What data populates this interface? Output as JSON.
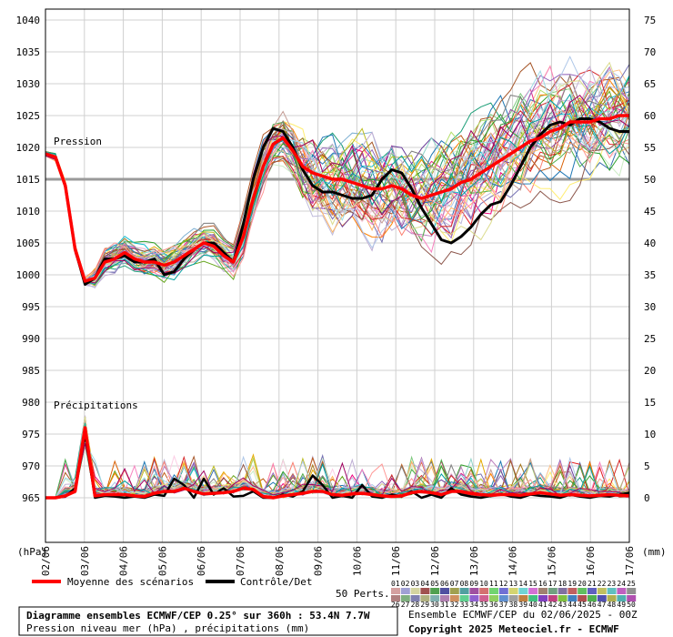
{
  "chart_data": {
    "type": "line",
    "labels": {
      "pressure_panel": "Pression",
      "precip_panel": "Précipitations",
      "left_unit": "(hPa)",
      "right_unit": "(mm)"
    },
    "x_labels": [
      "02/06",
      "03/06",
      "04/06",
      "05/06",
      "06/06",
      "07/06",
      "08/06",
      "09/06",
      "10/06",
      "11/06",
      "12/06",
      "13/06",
      "14/06",
      "15/06",
      "16/06",
      "17/06"
    ],
    "y_left_ticks": [
      1040,
      1035,
      1030,
      1025,
      1020,
      1015,
      1010,
      1005,
      1000,
      995,
      990,
      985,
      980,
      975,
      970,
      965
    ],
    "y_right_ticks": [
      75,
      70,
      65,
      60,
      55,
      50,
      45,
      40,
      35,
      30,
      25,
      20,
      15,
      10,
      5,
      0
    ],
    "reference_line_hpa": 1015,
    "pressure_mean": [
      1019,
      1018.5,
      1014,
      1004,
      999,
      999.5,
      1002,
      1002.5,
      1003.5,
      1002.5,
      1002,
      1002,
      1001.5,
      1002,
      1003,
      1004,
      1005,
      1004.5,
      1003,
      1002,
      1006,
      1012,
      1017,
      1020.5,
      1021.5,
      1019.5,
      1017,
      1016,
      1015.5,
      1015,
      1015,
      1014.5,
      1014,
      1013.5,
      1013.5,
      1014,
      1013.5,
      1012.5,
      1012,
      1012.5,
      1013,
      1013.5,
      1014.5,
      1015,
      1016,
      1017,
      1018,
      1019,
      1020,
      1021,
      1021.5,
      1022.5,
      1023,
      1024,
      1024,
      1024,
      1024.5,
      1024.5,
      1025,
      1025
    ],
    "pressure_control": [
      1019,
      1018.5,
      1014,
      1004,
      998.5,
      999.5,
      1002.5,
      1002.5,
      1003,
      1002,
      1002,
      1002.5,
      1000,
      1000.5,
      1002.5,
      1004,
      1005,
      1005,
      1003.5,
      1002,
      1008,
      1015,
      1020,
      1023,
      1022.5,
      1020,
      1016.5,
      1014,
      1013,
      1013,
      1012.5,
      1012,
      1012,
      1012.5,
      1015,
      1016.5,
      1016,
      1013.5,
      1010.5,
      1008,
      1005.5,
      1005,
      1006,
      1007.5,
      1009.5,
      1011,
      1011.5,
      1014,
      1017,
      1020,
      1022,
      1023.5,
      1024,
      1023.5,
      1024.5,
      1024.5,
      1024,
      1023,
      1022.5,
      1022.5
    ],
    "precip_mean": [
      0,
      0,
      0.3,
      1,
      11,
      0.3,
      0.5,
      0.5,
      0.5,
      0.3,
      0.2,
      0.7,
      1,
      1,
      1.5,
      1,
      0.6,
      0.7,
      0.8,
      1,
      1.5,
      1.3,
      0.2,
      0,
      0.3,
      0.5,
      0.7,
      1,
      1,
      0.5,
      0.4,
      0.6,
      0.7,
      0.5,
      0.3,
      0.2,
      0.3,
      0.8,
      1,
      0.8,
      0.5,
      1,
      1,
      0.7,
      0.5,
      0.4,
      0.5,
      0.5,
      0.4,
      0.6,
      0.8,
      0.6,
      0.4,
      0.5,
      0.4,
      0.3,
      0.4,
      0.5,
      0.4,
      0.3
    ],
    "precip_control": [
      0,
      0,
      0.2,
      1.5,
      10,
      0,
      0.3,
      0.2,
      0,
      0.2,
      0,
      0.5,
      0.3,
      3,
      2,
      0,
      3,
      0.5,
      1.5,
      0.2,
      0.3,
      1,
      0,
      0,
      0.5,
      0.2,
      1,
      3.5,
      2,
      0,
      0.3,
      0,
      2,
      0.2,
      0,
      0.5,
      0.2,
      1,
      0,
      0.5,
      0,
      1.5,
      0.5,
      0.2,
      0,
      0.3,
      0.6,
      0.2,
      0,
      0.5,
      0.3,
      0.2,
      0,
      0.5,
      0.2,
      0,
      0.3,
      0.2,
      0.5,
      0.8
    ],
    "member_count": 50,
    "member_colors": [
      "#e6a0c4",
      "#7fc97f",
      "#beaed4",
      "#fdc086",
      "#386cb0",
      "#f0027f",
      "#bf5b17",
      "#1b9e77",
      "#d95f02",
      "#7570b3",
      "#e7298a",
      "#66a61e",
      "#e6ab02",
      "#a6761d",
      "#1f78b4",
      "#33a02c",
      "#e31a1c",
      "#ff7f00",
      "#6a3d9a",
      "#b15928",
      "#8dd3c7",
      "#bebada",
      "#fb8072",
      "#80b1d3",
      "#fdb462",
      "#b3de69",
      "#fccde5",
      "#bc80bd",
      "#ccebc5",
      "#ffed6f",
      "#4daf4a",
      "#984ea3",
      "#a65628",
      "#f781bf",
      "#17becf",
      "#9467bd",
      "#8c564b",
      "#2ca02c",
      "#d62728",
      "#1f77b4",
      "#bcbd22",
      "#7f7f7f",
      "#aec7e8",
      "#ff9896",
      "#c5b0d5",
      "#c49c94",
      "#9edae5",
      "#dbdb8d",
      "#00a0a0",
      "#a00060"
    ],
    "swatch_colors_top": [
      "#d4a0a0",
      "#a0a0d4",
      "#d4d4a0",
      "#a05050",
      "#50a050",
      "#5050a0",
      "#a0a050",
      "#50a0a0",
      "#a050a0",
      "#d47070",
      "#70d470",
      "#7070d4",
      "#d4d470",
      "#70d4d4",
      "#d470d4",
      "#a08070",
      "#70a080",
      "#8070a0",
      "#c06060",
      "#60c060",
      "#6060c0",
      "#c0c060",
      "#60c0c0",
      "#c060c0",
      "#909090"
    ],
    "swatch_colors_bottom": [
      "#b08080",
      "#80b080",
      "#8080b0",
      "#b0b080",
      "#80b0b0",
      "#b080b0",
      "#d09060",
      "#60d090",
      "#9060d0",
      "#d06090",
      "#90d060",
      "#6090d0",
      "#a0a0a0",
      "#c08040",
      "#40c080",
      "#8040c0",
      "#c04080",
      "#80c040",
      "#4080c0",
      "#b05050",
      "#50b050",
      "#5050b0",
      "#b0b050",
      "#50b0b0",
      "#b050b0"
    ]
  },
  "legend": {
    "mean_label": "Moyenne des scénarios",
    "control_label": "Contrôle/Det",
    "perts_label": "50 Perts.",
    "mean_color": "#ff0000",
    "control_color": "#000000",
    "swatch_numbers_top": [
      "01",
      "02",
      "03",
      "04",
      "05",
      "06",
      "07",
      "08",
      "09",
      "10",
      "11",
      "12",
      "13",
      "14",
      "15",
      "16",
      "17",
      "18",
      "19",
      "20",
      "21",
      "22",
      "23",
      "24",
      "25"
    ],
    "swatch_numbers_bottom": [
      "26",
      "27",
      "28",
      "29",
      "30",
      "31",
      "32",
      "33",
      "34",
      "35",
      "36",
      "37",
      "38",
      "39",
      "40",
      "41",
      "42",
      "43",
      "44",
      "45",
      "46",
      "47",
      "48",
      "49",
      "50"
    ]
  },
  "info": {
    "title": "Diagramme ensembles ECMWF/CEP 0.25° sur 360h : 53.4N 7.7W",
    "subtitle": "Pression niveau mer (hPa) , précipitations (mm)",
    "run": "Ensemble ECMWF/CEP du 02/06/2025 - 00Z",
    "copyright": "Copyright 2025 Meteociel.fr - ECMWF"
  }
}
